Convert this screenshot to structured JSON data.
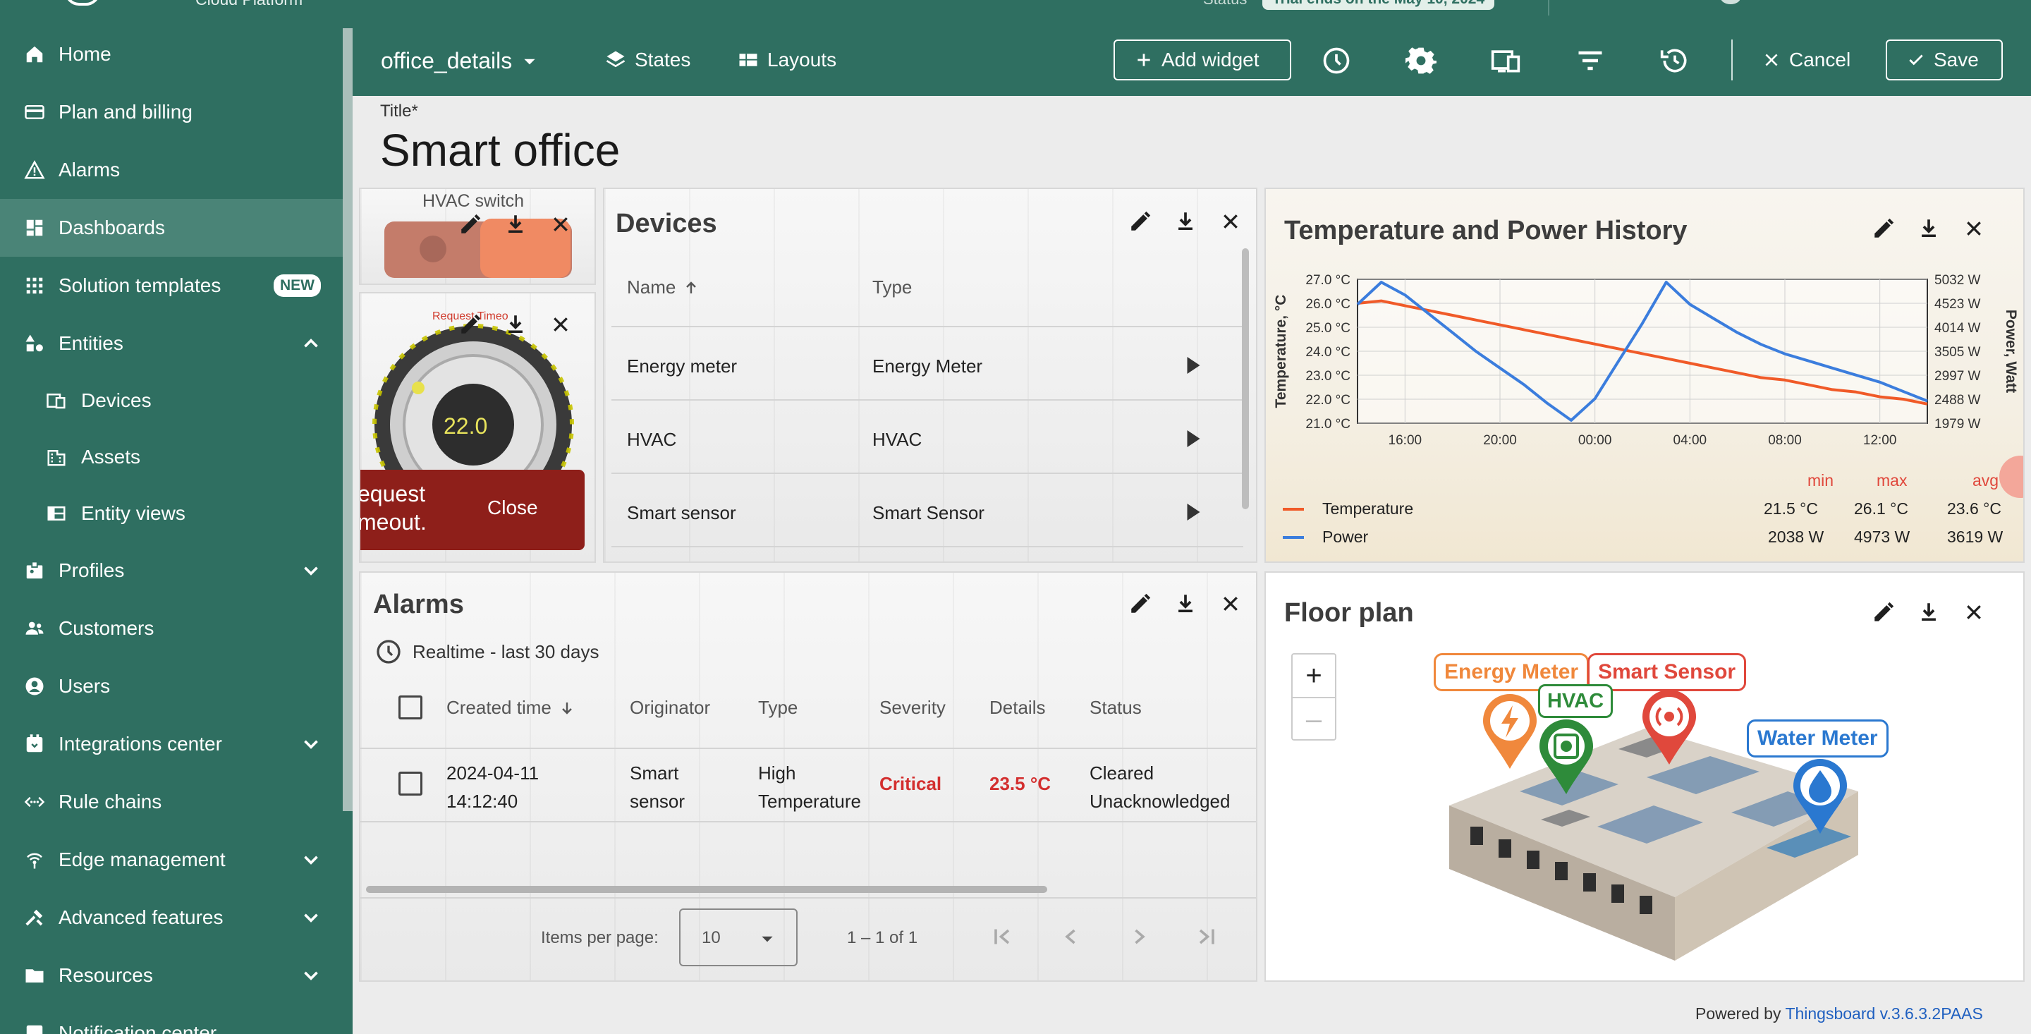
{
  "brand": {
    "name": "Cloud Platform"
  },
  "sidebar": {
    "items": [
      {
        "label": "Home"
      },
      {
        "label": "Plan and billing"
      },
      {
        "label": "Alarms"
      },
      {
        "label": "Dashboards"
      },
      {
        "label": "Solution templates",
        "badge": "NEW"
      },
      {
        "label": "Entities"
      },
      {
        "label": "Devices"
      },
      {
        "label": "Assets"
      },
      {
        "label": "Entity views"
      },
      {
        "label": "Profiles"
      },
      {
        "label": "Customers"
      },
      {
        "label": "Users"
      },
      {
        "label": "Integrations center"
      },
      {
        "label": "Rule chains"
      },
      {
        "label": "Edge management"
      },
      {
        "label": "Advanced features"
      },
      {
        "label": "Resources"
      },
      {
        "label": "Notification center"
      }
    ]
  },
  "topbar": {
    "status_label": "Status",
    "status_value": "Trial ends on the May 10, 2024",
    "dashboard_state": "office_details",
    "states_label": "States",
    "layouts_label": "Layouts",
    "add_widget_label": "Add widget",
    "cancel_label": "Cancel",
    "save_label": "Save"
  },
  "title": {
    "label": "Title*",
    "value": "Smart office"
  },
  "hvac_switch": {
    "title": "HVAC switch"
  },
  "knob": {
    "value": "22.0",
    "error_label": "Request Timeo",
    "toast_text": "equest\nmeout.",
    "toast_close": "Close"
  },
  "devices": {
    "title": "Devices",
    "columns": [
      "Name",
      "Type"
    ],
    "rows": [
      {
        "name": "Energy meter",
        "type": "Energy Meter"
      },
      {
        "name": "HVAC",
        "type": "HVAC"
      },
      {
        "name": "Smart sensor",
        "type": "Smart Sensor"
      }
    ]
  },
  "chart_data": {
    "type": "line",
    "title": "Temperature and Power History",
    "ylabel": "Temperature, °C",
    "y2label": "Power, Watt",
    "x_ticks": [
      "16:00",
      "20:00",
      "00:00",
      "04:00",
      "08:00",
      "12:00"
    ],
    "y_ticks": [
      "27.0 °C",
      "26.0 °C",
      "25.0 °C",
      "24.0 °C",
      "23.0 °C",
      "22.0 °C",
      "21.0 °C"
    ],
    "y2_ticks": [
      "5032 W",
      "4523 W",
      "4014 W",
      "3505 W",
      "2997 W",
      "2488 W",
      "1979 W"
    ],
    "ylim": [
      21,
      27
    ],
    "y2lim": [
      1979,
      5032
    ],
    "x": [
      0,
      1,
      2,
      3,
      4,
      5,
      6,
      7,
      8,
      9,
      10,
      11,
      12,
      13,
      14,
      15,
      16,
      17,
      18,
      19,
      20,
      21,
      22,
      23,
      24
    ],
    "x_hours_start": 14,
    "series": [
      {
        "name": "Temperature",
        "color": "#f05a28",
        "axis": "left",
        "values": [
          26.0,
          26.1,
          25.9,
          25.7,
          25.5,
          25.3,
          25.1,
          24.9,
          24.7,
          24.5,
          24.3,
          24.1,
          23.9,
          23.7,
          23.5,
          23.3,
          23.1,
          22.9,
          22.8,
          22.6,
          22.4,
          22.3,
          22.1,
          22.0,
          21.8
        ]
      },
      {
        "name": "Power",
        "color": "#3b7ddd",
        "axis": "right",
        "values": [
          4500,
          4970,
          4700,
          4300,
          3900,
          3500,
          3150,
          2800,
          2400,
          2040,
          2500,
          3300,
          4100,
          4970,
          4500,
          4200,
          3900,
          3650,
          3450,
          3300,
          3150,
          3000,
          2850,
          2650,
          2450
        ]
      }
    ],
    "legend_headers": [
      "min",
      "max",
      "avg"
    ],
    "legend": [
      {
        "name": "Temperature",
        "min": "21.5 °C",
        "max": "26.1 °C",
        "avg": "23.6 °C"
      },
      {
        "name": "Power",
        "min": "2038 W",
        "max": "4973 W",
        "avg": "3619 W"
      }
    ]
  },
  "alarms": {
    "title": "Alarms",
    "timewindow": "Realtime - last 30 days",
    "columns": [
      "Created time",
      "Originator",
      "Type",
      "Severity",
      "Details",
      "Status"
    ],
    "rows": [
      {
        "created": "2024-04-11\n14:12:40",
        "originator": "Smart\nsensor",
        "type": "High\nTemperature",
        "severity": "Critical",
        "details": "23.5 °C",
        "status": "Cleared\nUnacknowledged"
      }
    ],
    "items_per_page_label": "Items per page:",
    "items_per_page": "10",
    "range": "1 – 1 of 1"
  },
  "floorplan": {
    "title": "Floor plan",
    "markers": [
      {
        "label": "Energy Meter",
        "color": "#f0883c"
      },
      {
        "label": "Smart Sensor",
        "color": "#e0483c"
      },
      {
        "label": "HVAC",
        "color": "#2e8b3a"
      },
      {
        "label": "Water Meter",
        "color": "#2a78d0"
      }
    ]
  },
  "footer": {
    "prefix": "Powered by ",
    "link": "Thingsboard v.3.6.3.2PAAS"
  }
}
